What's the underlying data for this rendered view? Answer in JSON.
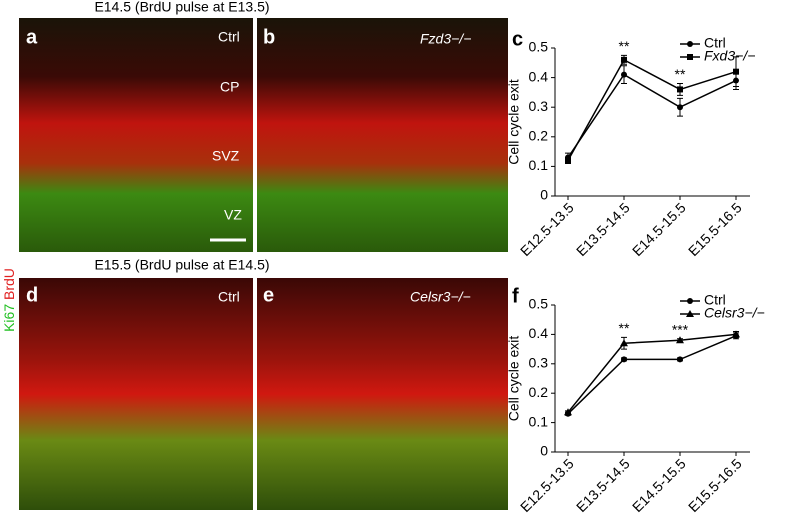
{
  "top_heading": "E14.5 (BrdU pulse at E13.5)",
  "middle_heading": "E15.5 (BrdU pulse at E14.5)",
  "stain_label": {
    "green": "Ki67",
    "red": "BrdU"
  },
  "panels": [
    {
      "letter": "a",
      "labels": [
        "Ctrl",
        "CP",
        "SVZ",
        "VZ"
      ]
    },
    {
      "letter": "b",
      "labels": [
        "Fzd3−/−"
      ]
    },
    {
      "letter": "d",
      "labels": [
        "Ctrl"
      ]
    },
    {
      "letter": "e",
      "labels": [
        "Celsr3−/−"
      ]
    }
  ],
  "chart_data": [
    {
      "type": "line",
      "letter": "c",
      "y_label": "Cell cycle exit",
      "categories": [
        "E12.5-13.5",
        "E13.5-14.5",
        "E14.5-15.5",
        "E15.5-16.5"
      ],
      "series": [
        {
          "name": "Ctrl",
          "color": "#000000",
          "marker": "circle",
          "values": [
            0.13,
            0.41,
            0.3,
            0.39
          ],
          "errors": [
            0.015,
            0.03,
            0.03,
            0.03
          ]
        },
        {
          "name": "Fxd3−/−",
          "color": "#000000",
          "marker": "square",
          "values": [
            0.12,
            0.46,
            0.36,
            0.42
          ],
          "errors": [
            0.01,
            0.015,
            0.02,
            0.05
          ]
        }
      ],
      "annotations": [
        null,
        "**",
        "**",
        null
      ],
      "ylim": [
        0,
        0.5
      ],
      "yticks": [
        0,
        0.1,
        0.2,
        0.3,
        0.4,
        0.5
      ],
      "legend": "top-right"
    },
    {
      "type": "line",
      "letter": "f",
      "y_label": "Cell cycle exit",
      "categories": [
        "E12.5-13.5",
        "E13.5-14.5",
        "E14.5-15.5",
        "E15.5-16.5"
      ],
      "series": [
        {
          "name": "Ctrl",
          "color": "#000000",
          "marker": "circle",
          "values": [
            0.13,
            0.315,
            0.315,
            0.395
          ],
          "errors": [
            0.005,
            0.005,
            0.005,
            0.01
          ]
        },
        {
          "name": "Celsr3−/−",
          "color": "#000000",
          "marker": "triangle",
          "values": [
            0.135,
            0.37,
            0.38,
            0.4
          ],
          "errors": [
            0.005,
            0.02,
            0.005,
            0.01
          ]
        }
      ],
      "annotations": [
        null,
        "**",
        "***",
        null
      ],
      "ylim": [
        0,
        0.5
      ],
      "yticks": [
        0,
        0.1,
        0.2,
        0.3,
        0.4,
        0.5
      ],
      "legend": "top-right"
    }
  ]
}
